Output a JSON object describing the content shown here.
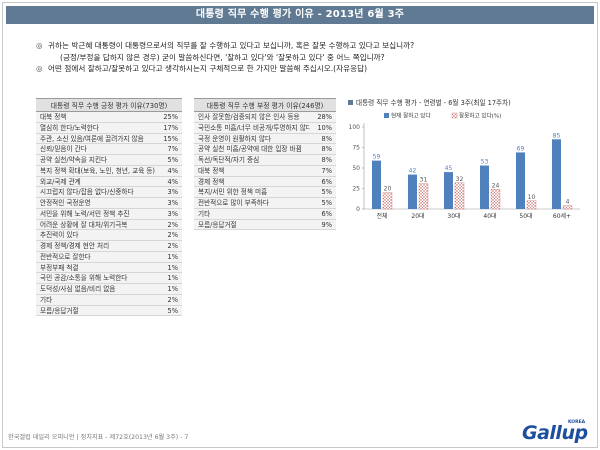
{
  "title": "대통령 직무 수행 평가 이유 - 2013년 6월 3주",
  "questions": {
    "q1_line1": "귀하는 박근혜 대통령이 대통령으로서의 직무를 잘 수행하고 있다고 보십니까, 혹은 잘못 수행하고 있다고 보십니까?",
    "q1_line2": "(긍정/부정을 답하지 않은 경우) 굳이 말씀하신다면, '잘하고 있다'와 '잘못하고 있다' 중 어느 쪽입니까?",
    "q2": "어떤 점에서 잘하고/잘못하고 있다고 생각하시는지 구체적으로 한 가지만 말씀해 주십시오.(자유응답)",
    "bullet": "◎"
  },
  "positive_table": {
    "header": "대통령 직무 수행 긍정 평가 이유(730명)",
    "rows": [
      {
        "label": "대북 정책",
        "value": "25%"
      },
      {
        "label": "열심히 한다/노력한다",
        "value": "17%"
      },
      {
        "label": "주관, 소신 있음/여론에 끌려가지 않음",
        "value": "15%"
      },
      {
        "label": "신뢰/믿음이 간다",
        "value": "7%"
      },
      {
        "label": "공약 실천/약속을 지킨다",
        "value": "5%"
      },
      {
        "label": "복지 정책 확대(보육, 노인, 청년, 교육 등)",
        "value": "4%"
      },
      {
        "label": "외교/국제 관계",
        "value": "4%"
      },
      {
        "label": "시끄럽지 않다/잡음 없다/신중하다",
        "value": "3%"
      },
      {
        "label": "안정적인 국정운영",
        "value": "3%"
      },
      {
        "label": "서민을 위해 노력/서민 정책 추진",
        "value": "3%"
      },
      {
        "label": "어려운 상황에 잘 대처/위기극복",
        "value": "2%"
      },
      {
        "label": "추진력이 있다",
        "value": "2%"
      },
      {
        "label": "경제 정책/경제 현안 처리",
        "value": "2%"
      },
      {
        "label": "전반적으로 잘한다",
        "value": "1%"
      },
      {
        "label": "부정부패 척결",
        "value": "1%"
      },
      {
        "label": "국민 공감/소통을 위해 노력한다",
        "value": "1%"
      },
      {
        "label": "도덕성/사심 없음/비리 없음",
        "value": "1%"
      },
      {
        "label": "기타",
        "value": "2%"
      },
      {
        "label": "모름/응답거절",
        "value": "5%"
      }
    ]
  },
  "negative_table": {
    "header": "대통령 직무 수행 부정 평가 이유(246명)",
    "rows": [
      {
        "label": "인사 잘못함/검증되지 않은 인사 등용",
        "value": "28%"
      },
      {
        "label": "국민소통 미흡/너무 비공개/투명하지 않다",
        "value": "10%"
      },
      {
        "label": "국정 운영이 원활하지 않다",
        "value": "8%"
      },
      {
        "label": "공약 실천 미흡/공약에 대한 입장 바뀜",
        "value": "8%"
      },
      {
        "label": "독선/독단적/자기 중심",
        "value": "8%"
      },
      {
        "label": "대북 정책",
        "value": "7%"
      },
      {
        "label": "경제 정책",
        "value": "6%"
      },
      {
        "label": "복지/서민 위한 정책 미흡",
        "value": "5%"
      },
      {
        "label": "전반적으로 많이 부족하다",
        "value": "5%"
      },
      {
        "label": "기타",
        "value": "6%"
      },
      {
        "label": "모름/응답거절",
        "value": "9%"
      }
    ]
  },
  "chart_title": "대통령 직무 수행 평가 - 연령별 - 6월 3주(최일 17주차)",
  "colors": {
    "positive": "#4f81bd",
    "negative_pattern": "#c0504d",
    "title_bar": "#5f7a92",
    "logo": "#1d4f9c"
  },
  "chart_data": {
    "type": "bar",
    "title": "대통령 직무 수행 평가 - 연령별 - 6월 3주(최일 17주차)",
    "categories": [
      "전체",
      "20대",
      "30대",
      "40대",
      "50대",
      "60세+"
    ],
    "series": [
      {
        "name": "현재 잘하고 있다",
        "values": [
          59,
          42,
          45,
          53,
          69,
          85
        ]
      },
      {
        "name": "잘못하고 있다(%)",
        "values": [
          20,
          31,
          32,
          24,
          10,
          4
        ]
      }
    ],
    "ylim": [
      0,
      100
    ],
    "yticks": [
      0,
      25,
      50,
      75,
      100
    ],
    "legend": "top",
    "grid": false
  },
  "footer": "한국갤럽 데일리 오피니언 | 정치지표 - 제72호(2013년 6월 3주) - 7",
  "logo": {
    "word": "Gallup",
    "korea": "KOREA"
  }
}
